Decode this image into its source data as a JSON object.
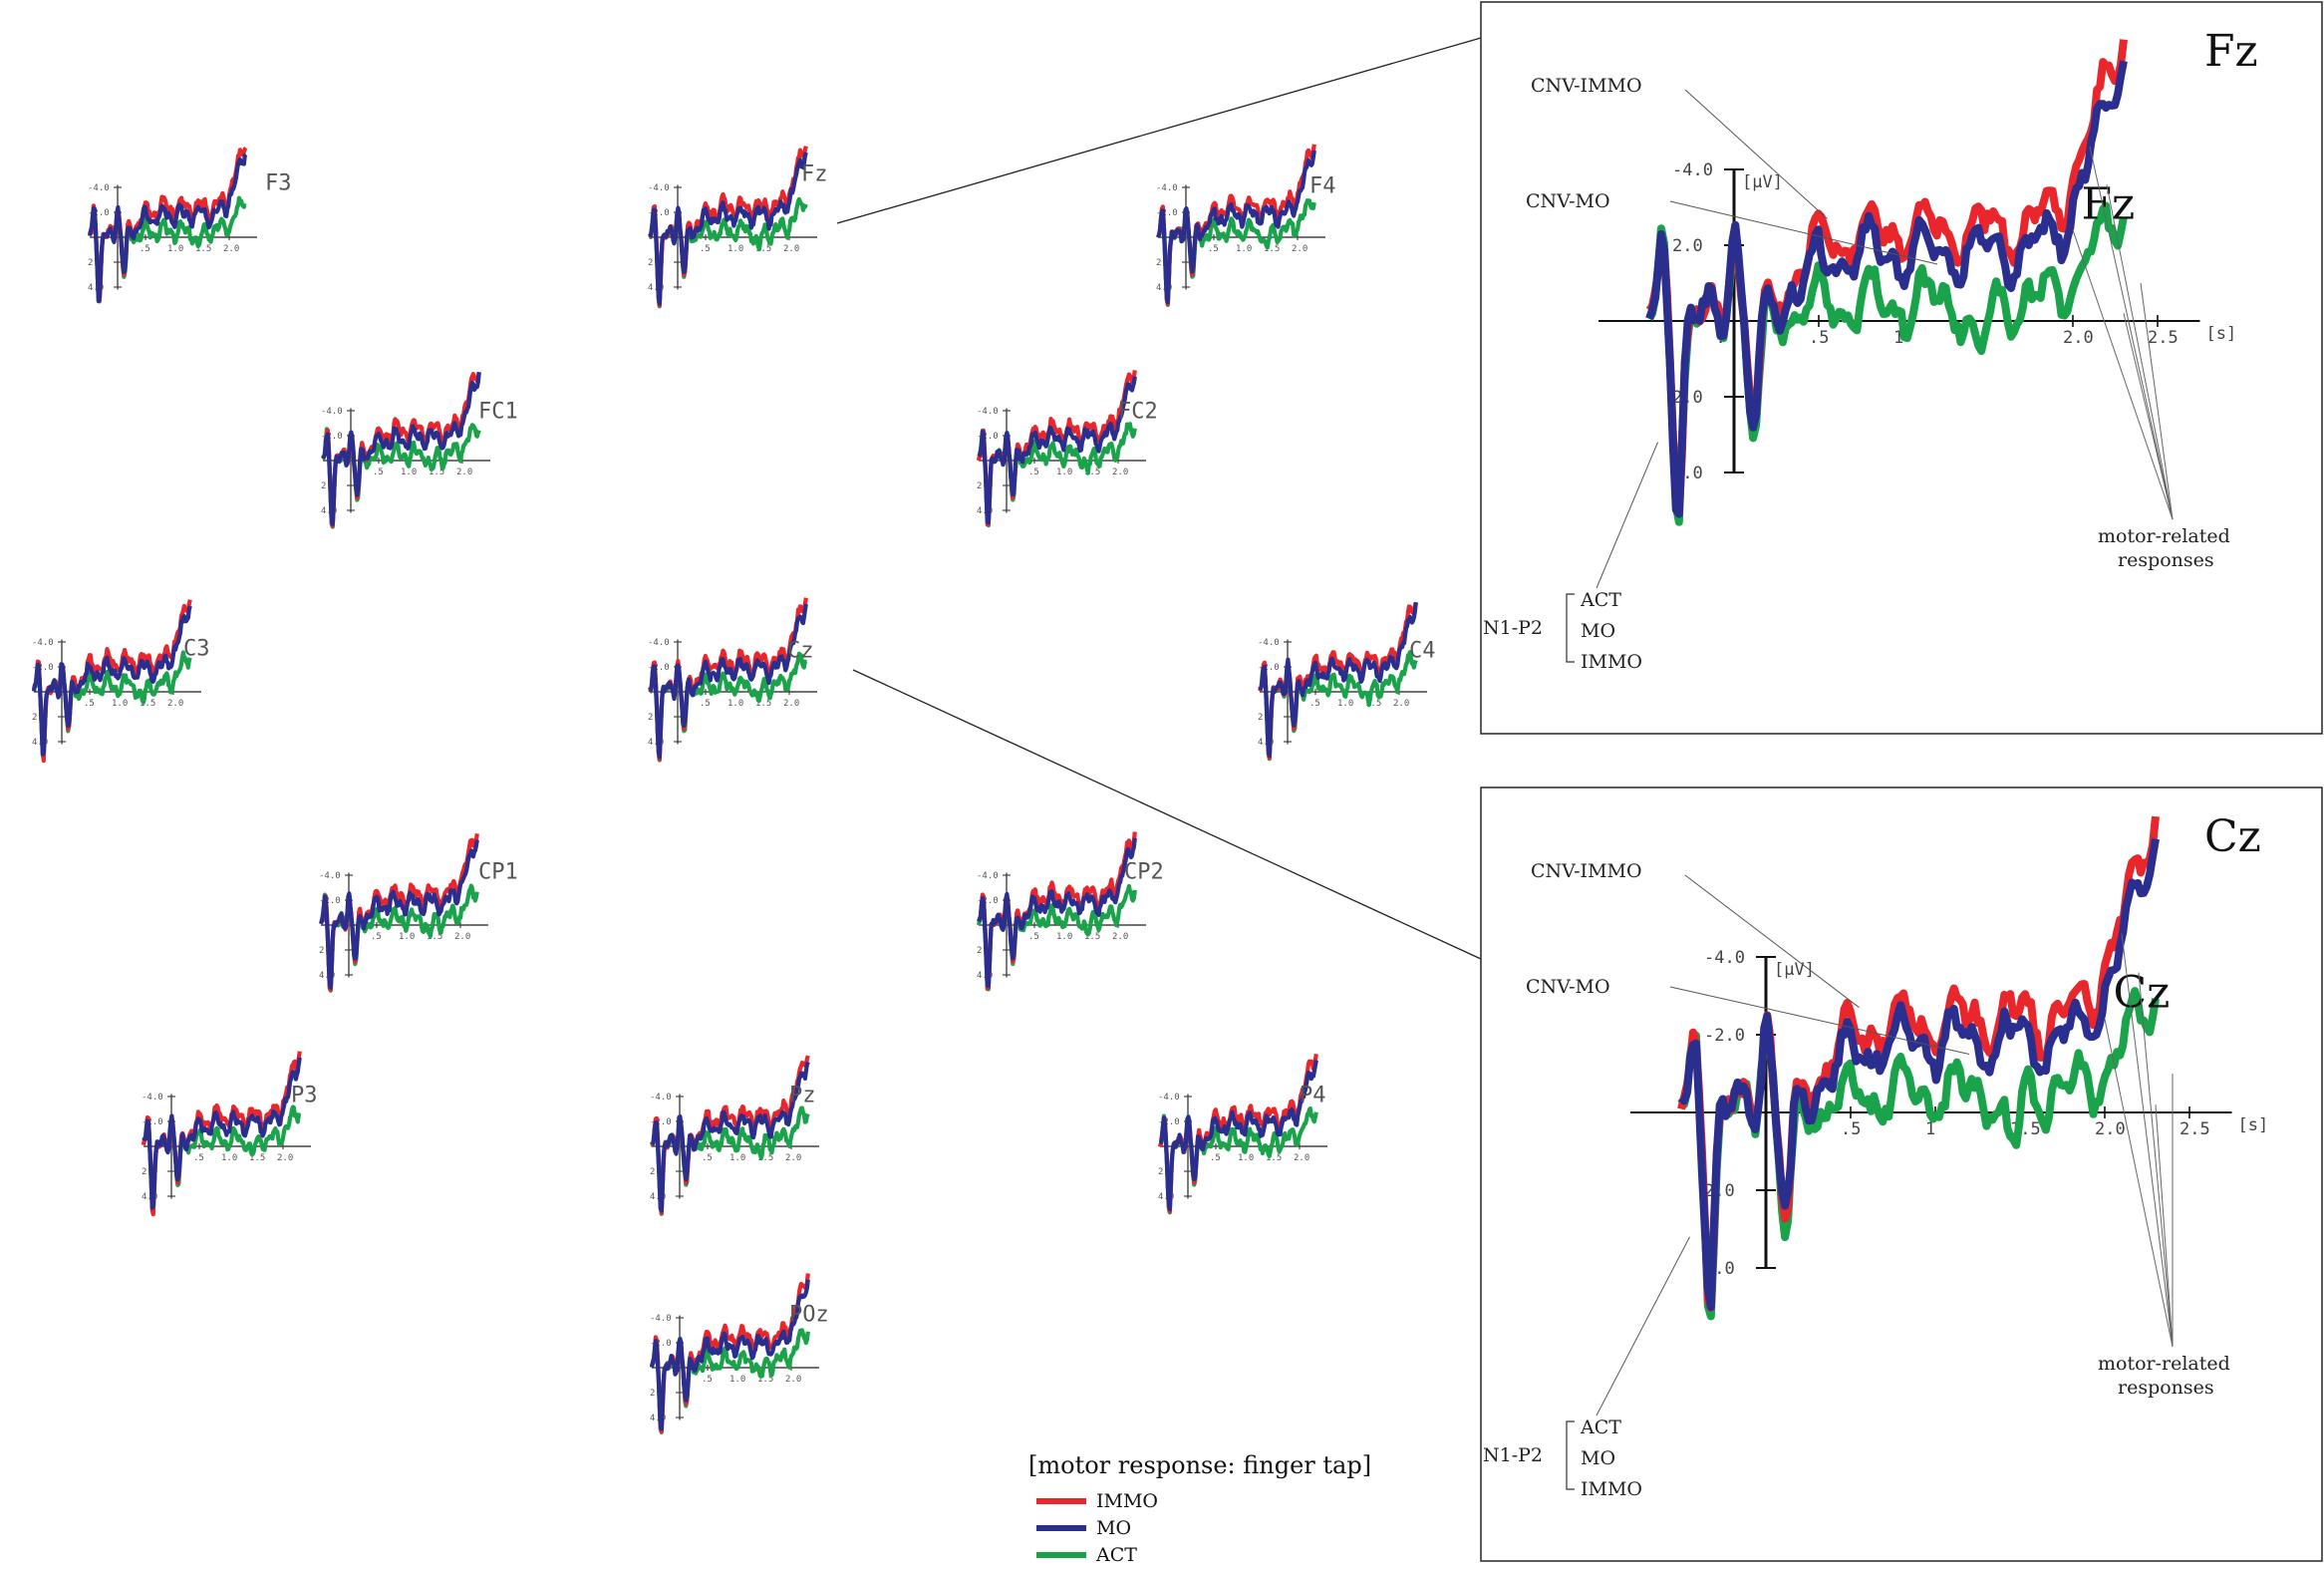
{
  "chart_data": {
    "type": "line",
    "title": "",
    "colors": {
      "IMMO": "#e8262b",
      "MO": "#2a2f8f",
      "ACT": "#1aa34a"
    },
    "units": {
      "y": "[µV]",
      "x": "[s]"
    },
    "x_ticks": [
      ".5",
      "1.0",
      "1.5",
      "2.0"
    ],
    "y_ticks": [
      "-4.0",
      "-2.0",
      "2.0",
      "4.0"
    ],
    "electrodes": [
      "F3",
      "Fz",
      "F4",
      "FC1",
      "FC2",
      "C3",
      "Cz",
      "C4",
      "CP1",
      "CP2",
      "P3",
      "Pz",
      "P4",
      "POz"
    ],
    "legend": {
      "title": "[motor response: finger tap]",
      "items": [
        "IMMO",
        "MO",
        "ACT"
      ]
    },
    "zoom_panels": [
      {
        "electrode": "Fz",
        "label": "Fz",
        "y_ticks": [
          "-4.0",
          "2.0",
          "2.0",
          "4.0"
        ],
        "x_ticks": [
          ".",
          ".5",
          "1",
          ".",
          "2.0",
          "2.5"
        ],
        "y_unit": "[µV]",
        "x_unit": "[s]",
        "annotations": {
          "cnv_immo": "CNV-IMMO",
          "cnv_mo": "CNV-MO",
          "motor": [
            "motor-related",
            "responses"
          ],
          "n1p2": "N1-P2",
          "n1p2_items": [
            "ACT",
            "MO",
            "IMMO"
          ]
        }
      },
      {
        "electrode": "Cz",
        "label": "Cz",
        "y_ticks": [
          "-4.0",
          "-2.0",
          "2.0",
          "4.0"
        ],
        "x_ticks": [
          ".",
          ".5",
          "1",
          "1.5",
          "2.0",
          "2.5"
        ],
        "y_unit": "[µV]",
        "x_unit": "[s]",
        "annotations": {
          "cnv_immo": "CNV-IMMO",
          "cnv_mo": "CNV-MO",
          "motor": [
            "motor-related",
            "responses"
          ],
          "n1p2": "N1-P2",
          "n1p2_items": [
            "ACT",
            "MO",
            "IMMO"
          ]
        }
      }
    ]
  }
}
